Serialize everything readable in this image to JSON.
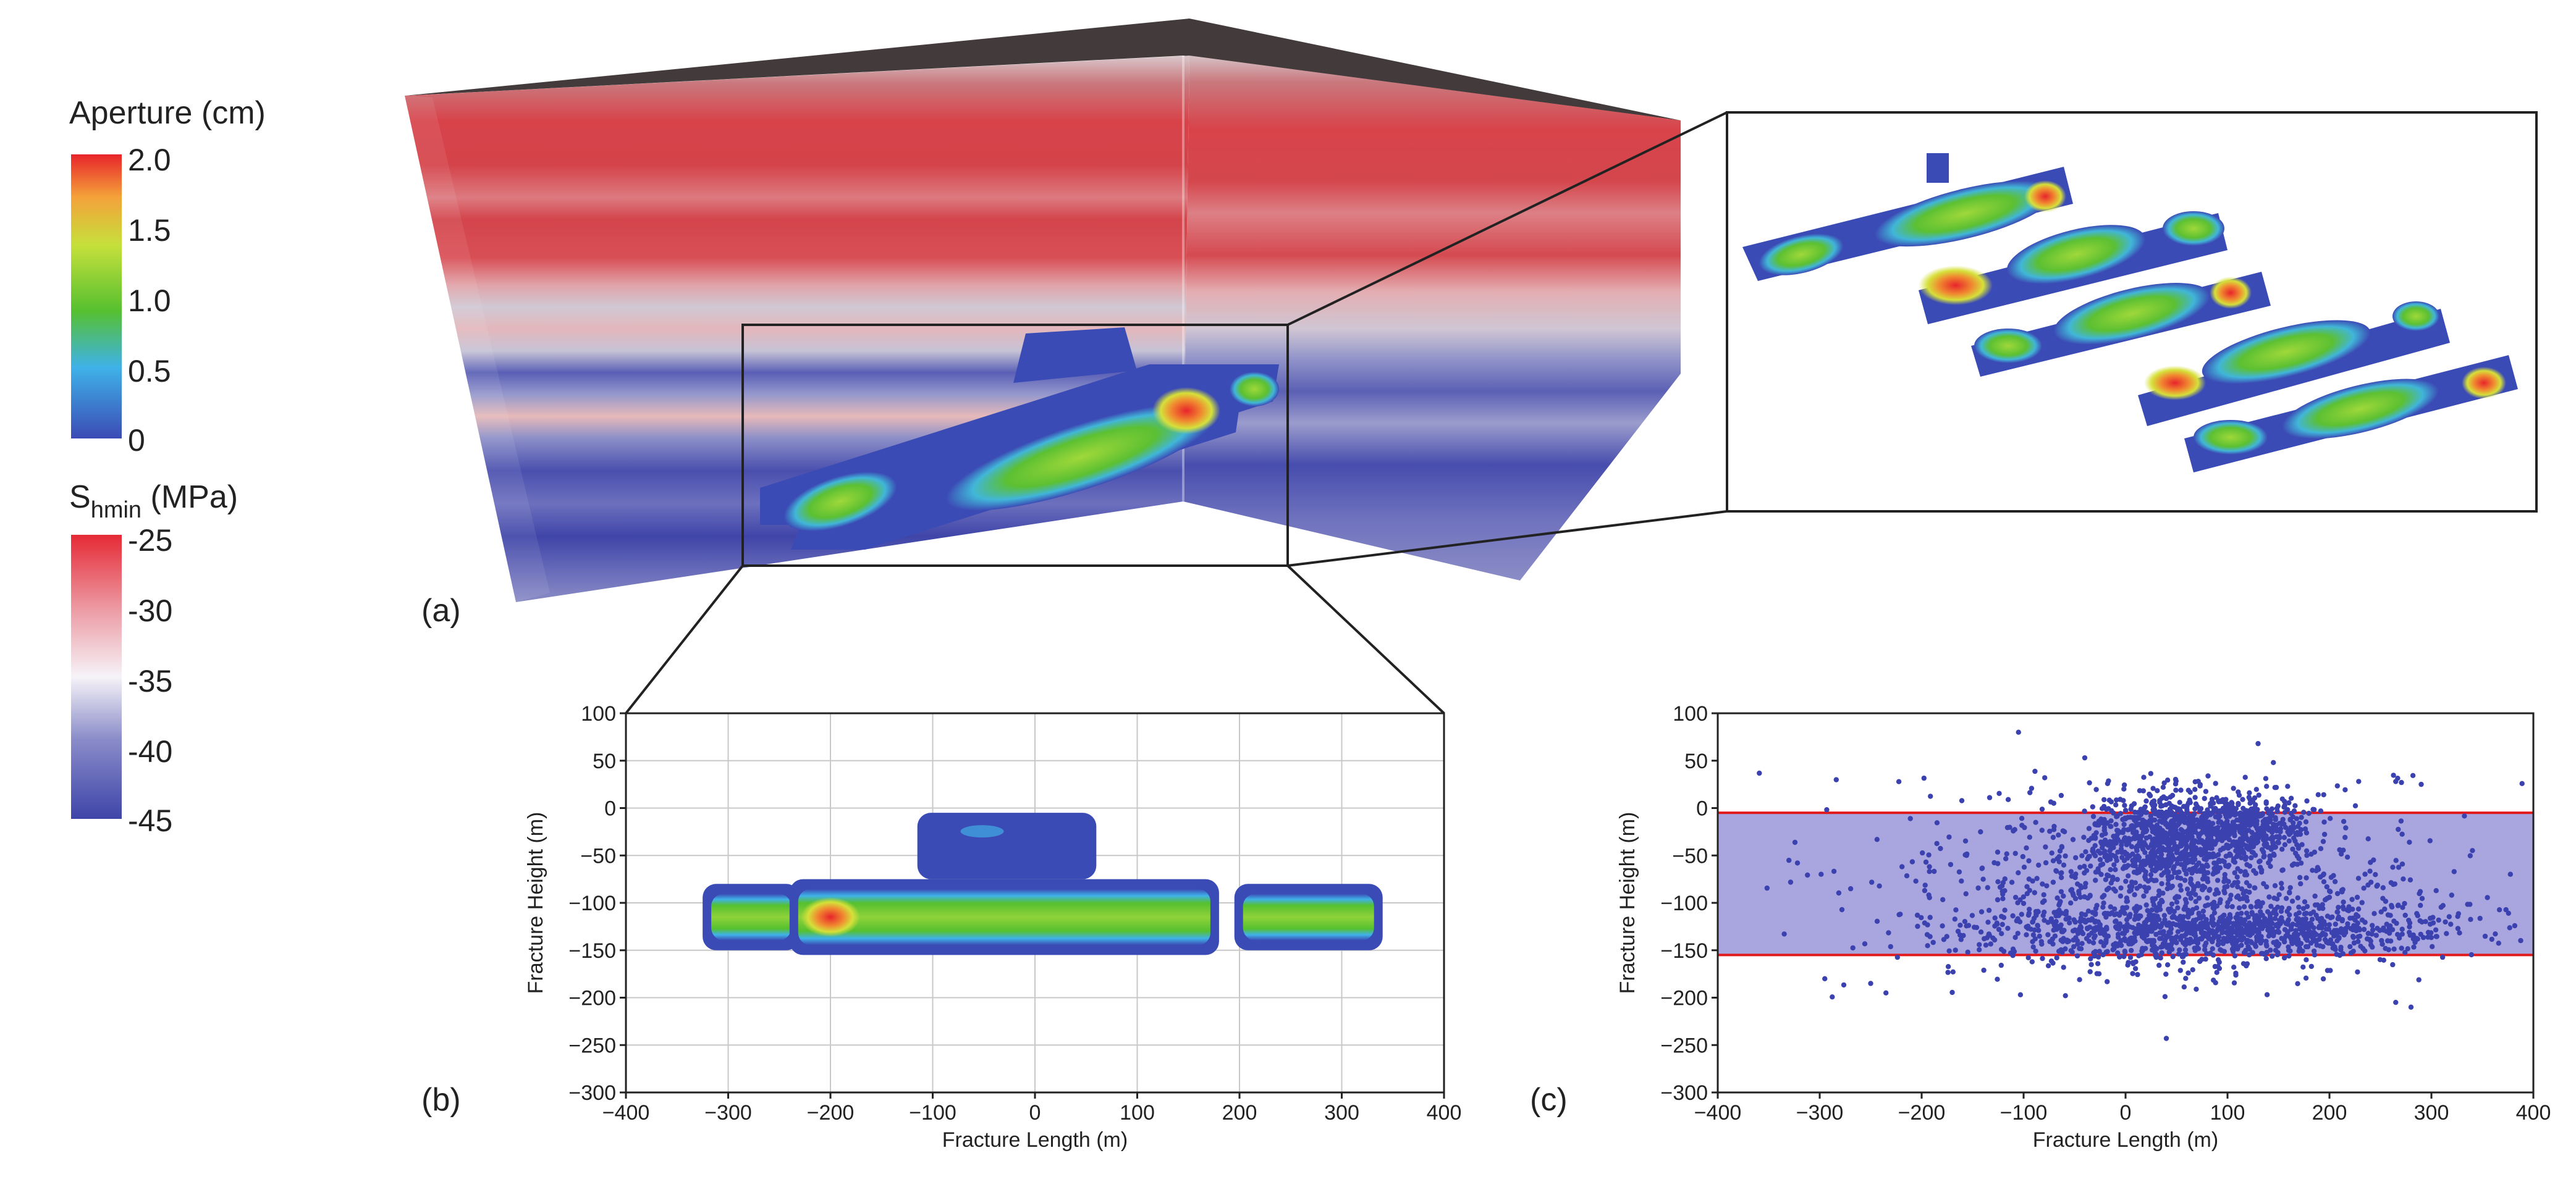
{
  "colors": {
    "aperture_scale": [
      "#3b4bb5",
      "#3fb2e8",
      "#56c02f",
      "#c6e03b",
      "#f4a23a",
      "#e8242b"
    ],
    "stress_scale": [
      "#3e45a8",
      "#8a8cc9",
      "#f6f3f8",
      "#ec9aa3",
      "#e52a35"
    ],
    "scatter_point": "#3b42b0",
    "band_fill": "#9a95d9",
    "band_line": "#e31a1c",
    "grid": "#c8c8c8"
  },
  "legend_aperture": {
    "title": "Aperture (cm)",
    "ticks": [
      "2.0",
      "1.5",
      "1.0",
      "0.5",
      "0"
    ]
  },
  "legend_stress": {
    "title_main": "S",
    "title_sub": "hmin",
    "title_unit": " (MPa)",
    "ticks": [
      "-25",
      "-30",
      "-35",
      "-40",
      "-45"
    ]
  },
  "panels": {
    "a": "(a)",
    "b": "(b)",
    "c": "(c)"
  },
  "chart_data": [
    {
      "panel": "b",
      "type": "heatmap",
      "xlabel": "Fracture Length (m)",
      "ylabel": "Fracture Height (m)",
      "xlim": [
        -400,
        400
      ],
      "ylim": [
        -300,
        100
      ],
      "xticks": [
        -400,
        -300,
        -200,
        -100,
        0,
        100,
        200,
        300,
        400
      ],
      "yticks": [
        100,
        50,
        0,
        -50,
        -100,
        -150,
        -200,
        -250,
        -300
      ],
      "grid": true,
      "fractures": [
        {
          "x_range": [
            -325,
            -230
          ],
          "y_range": [
            -150,
            -80
          ],
          "peak_aperture_cm": 1.0
        },
        {
          "x_range": [
            -240,
            180
          ],
          "y_range": [
            -155,
            -75
          ],
          "peak_aperture_cm": 2.0,
          "peak_at": [
            -200,
            -115
          ]
        },
        {
          "x_range": [
            195,
            340
          ],
          "y_range": [
            -150,
            -80
          ],
          "peak_aperture_cm": 1.0
        },
        {
          "x_range": [
            -115,
            60
          ],
          "y_range": [
            -75,
            -5
          ],
          "peak_aperture_cm": 0.5
        }
      ]
    },
    {
      "panel": "c",
      "type": "scatter",
      "xlabel": "Fracture Length (m)",
      "ylabel": "Fracture Height (m)",
      "xlim": [
        -400,
        400
      ],
      "ylim": [
        -300,
        100
      ],
      "xticks": [
        -400,
        -300,
        -200,
        -100,
        0,
        100,
        200,
        300,
        400
      ],
      "yticks": [
        100,
        50,
        0,
        -50,
        -100,
        -150,
        -200,
        -250,
        -300
      ],
      "grid": false,
      "band": {
        "y_top": -5,
        "y_bottom": -155
      },
      "point_count_approx": 3000,
      "clusters": [
        {
          "x_center": 40,
          "y_center": -30,
          "x_spread": 35,
          "y_spread": 25,
          "share": 0.25
        },
        {
          "x_center": 120,
          "y_center": -20,
          "x_spread": 30,
          "y_spread": 18,
          "share": 0.13
        },
        {
          "x_center": 100,
          "y_center": -130,
          "x_spread": 110,
          "y_spread": 14,
          "share": 0.3
        },
        {
          "x_center": 40,
          "y_center": -90,
          "x_spread": 120,
          "y_spread": 45,
          "share": 0.27
        },
        {
          "x_center": 0,
          "y_center": -80,
          "x_spread": 200,
          "y_spread": 80,
          "share": 0.05
        }
      ],
      "outliers": [
        [
          -105,
          80
        ],
        [
          -40,
          53
        ],
        [
          130,
          68
        ],
        [
          145,
          48
        ],
        [
          265,
          28
        ],
        [
          290,
          25
        ],
        [
          -295,
          -180
        ],
        [
          -250,
          -185
        ],
        [
          -235,
          -195
        ],
        [
          40,
          -243
        ],
        [
          280,
          -210
        ],
        [
          265,
          -205
        ]
      ]
    }
  ]
}
